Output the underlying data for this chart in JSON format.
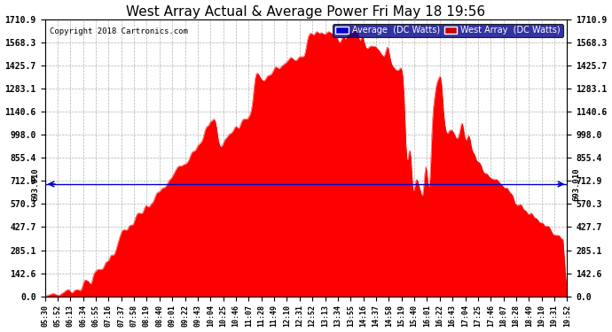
{
  "title": "West Array Actual & Average Power Fri May 18 19:56",
  "copyright": "Copyright 2018 Cartronics.com",
  "legend_labels": [
    "Average  (DC Watts)",
    "West Array  (DC Watts)"
  ],
  "legend_colors": [
    "#0000cd",
    "#cc0000"
  ],
  "average_value": 693.01,
  "y_tick_labels": [
    "0.0",
    "142.6",
    "285.1",
    "427.7",
    "570.3",
    "712.9",
    "855.4",
    "998.0",
    "1140.6",
    "1283.1",
    "1425.7",
    "1568.3",
    "1710.9"
  ],
  "y_tick_values": [
    0.0,
    142.6,
    285.1,
    427.7,
    570.3,
    712.9,
    855.4,
    998.0,
    1140.6,
    1283.1,
    1425.7,
    1568.3,
    1710.9
  ],
  "left_label": "693.010",
  "right_label": "693.010",
  "background_color": "#ffffff",
  "fill_color": "#ff0000",
  "avg_line_color": "#0000cc",
  "grid_color": "#aaaaaa",
  "x_ticks": [
    "05:30",
    "05:52",
    "06:13",
    "06:34",
    "06:55",
    "07:16",
    "07:37",
    "07:58",
    "08:19",
    "08:40",
    "09:01",
    "09:22",
    "09:43",
    "10:04",
    "10:25",
    "10:46",
    "11:07",
    "11:28",
    "11:49",
    "12:10",
    "12:31",
    "12:52",
    "13:13",
    "13:34",
    "13:55",
    "14:16",
    "14:37",
    "14:58",
    "15:19",
    "15:40",
    "16:01",
    "16:22",
    "16:43",
    "17:04",
    "17:25",
    "17:46",
    "18:07",
    "18:28",
    "18:49",
    "19:10",
    "19:31",
    "19:52"
  ],
  "ymax": 1710.9,
  "figwidth": 6.9,
  "figheight": 3.75,
  "dpi": 100
}
